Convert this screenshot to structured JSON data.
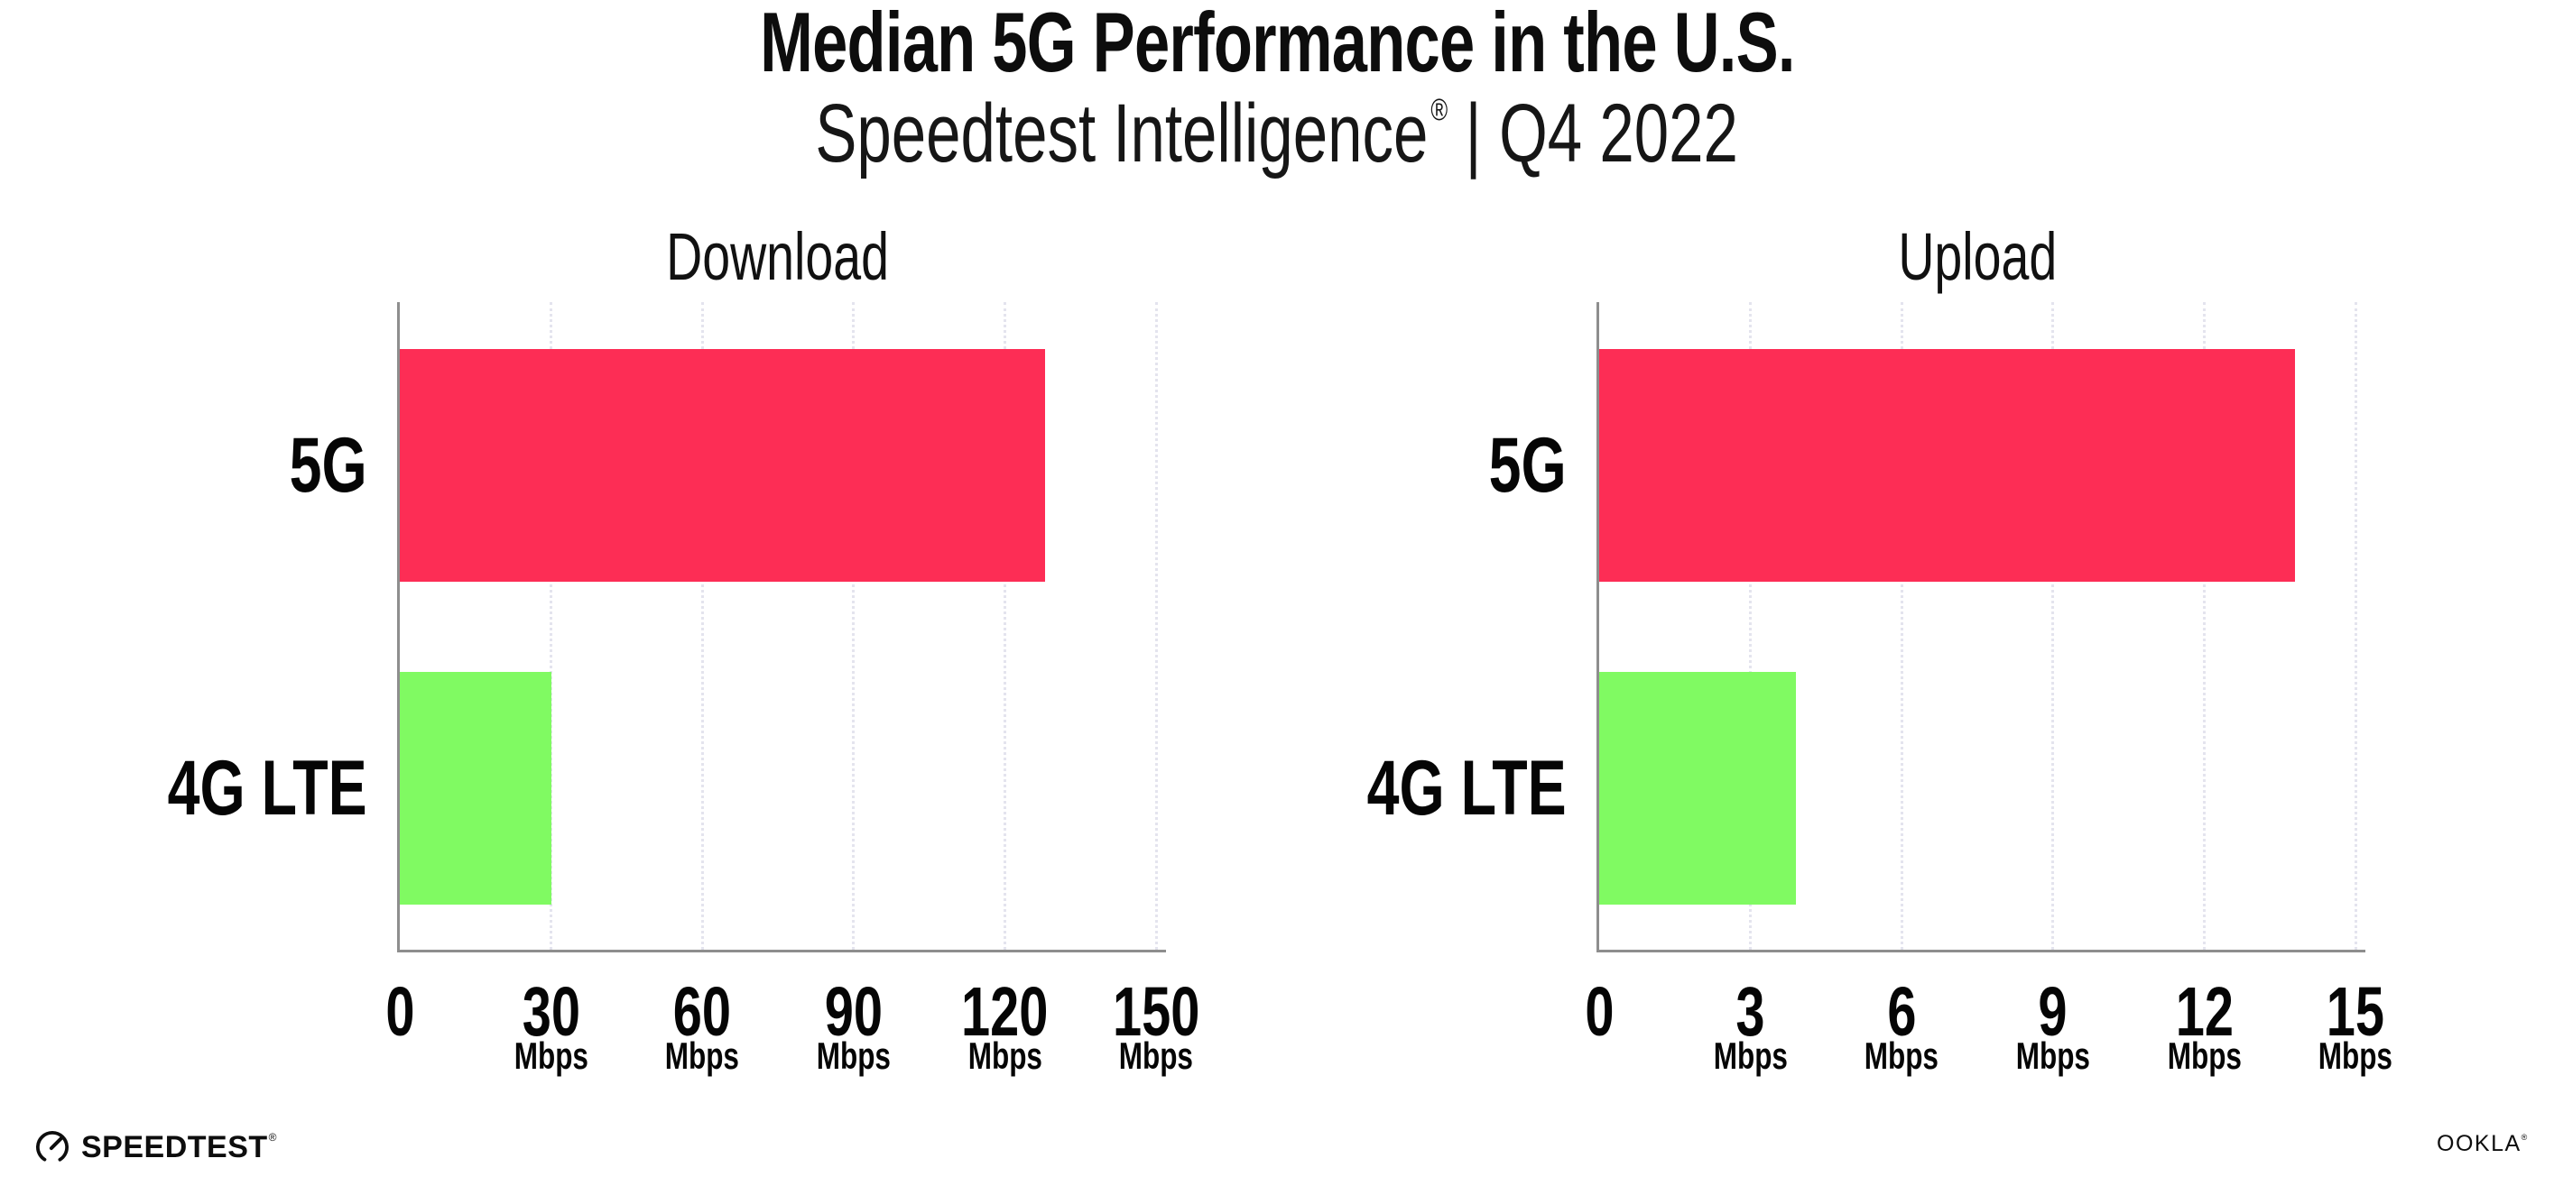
{
  "header": {
    "title": "Median 5G Performance in the U.S.",
    "subtitle_brand": "Speedtest Intelligence",
    "subtitle_reg": "®",
    "subtitle_sep": "|",
    "subtitle_period": "Q4 2022"
  },
  "colors": {
    "bar_5g": "#FD2D55",
    "bar_4g_lte": "#80FA62",
    "axis": "#8E8E8E",
    "gridline": "#E4E4EE",
    "text": "#0D0D0D"
  },
  "chart_data": [
    {
      "type": "bar",
      "orientation": "horizontal",
      "title": "Download",
      "categories": [
        "5G",
        "4G LTE"
      ],
      "values": [
        128,
        30
      ],
      "unit": "Mbps",
      "xlim": [
        0,
        150
      ],
      "xticks": [
        0,
        30,
        60,
        90,
        120,
        150
      ],
      "tick_unit_label": "Mbps",
      "grid": "vertical-dotted",
      "legend": "none"
    },
    {
      "type": "bar",
      "orientation": "horizontal",
      "title": "Upload",
      "categories": [
        "5G",
        "4G LTE"
      ],
      "values": [
        13.8,
        3.9
      ],
      "unit": "Mbps",
      "xlim": [
        0,
        15
      ],
      "xticks": [
        0,
        3,
        6,
        9,
        12,
        15
      ],
      "tick_unit_label": "Mbps",
      "grid": "vertical-dotted",
      "legend": "none"
    }
  ],
  "footer": {
    "speedtest_logo_text": "SPEEDTEST",
    "speedtest_logo_reg": "®",
    "speedtest_gauge_icon": "speedometer-gauge",
    "ookla_logo_text": "OOKLA",
    "ookla_logo_reg": "®"
  }
}
